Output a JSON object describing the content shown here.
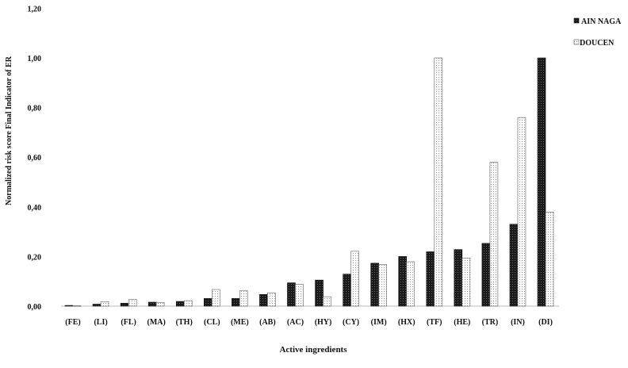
{
  "chart_data": {
    "type": "bar",
    "title": "",
    "xlabel": "Active ingredients",
    "ylabel": "Normalized  risk score Final Indicator of ER",
    "ylim": [
      0,
      1.2
    ],
    "yticks": [
      "0,00",
      "0,20",
      "0,40",
      "0,60",
      "0,80",
      "1,00",
      "1,20"
    ],
    "ytick_values": [
      0,
      0.2,
      0.4,
      0.6,
      0.8,
      1.0,
      1.2
    ],
    "grid": false,
    "legend_position": "top-right",
    "categories": [
      "(FE)",
      "(LI)",
      "(FL)",
      "(MA)",
      "(TH)",
      "(CL)",
      "(ME)",
      "(AB)",
      "(AC)",
      "(HY)",
      "(CY)",
      "(IM)",
      "(HX)",
      "(TF)",
      "(HE)",
      "(TR)",
      "(IN)",
      "(DI)"
    ],
    "series": [
      {
        "name": "AIN NAGA",
        "color": "#1a1a1a",
        "pattern": "dark-dotted",
        "values": [
          0.003,
          0.008,
          0.012,
          0.016,
          0.019,
          0.031,
          0.031,
          0.047,
          0.094,
          0.105,
          0.129,
          0.173,
          0.2,
          0.219,
          0.228,
          0.253,
          0.33,
          1.0
        ]
      },
      {
        "name": "DOUCEN",
        "color": "#f2f2f2",
        "pattern": "light-dotted",
        "values": [
          0.002,
          0.018,
          0.027,
          0.015,
          0.022,
          0.067,
          0.062,
          0.054,
          0.088,
          0.038,
          0.221,
          0.168,
          0.179,
          1.0,
          0.194,
          0.58,
          0.76,
          0.379
        ]
      }
    ]
  }
}
